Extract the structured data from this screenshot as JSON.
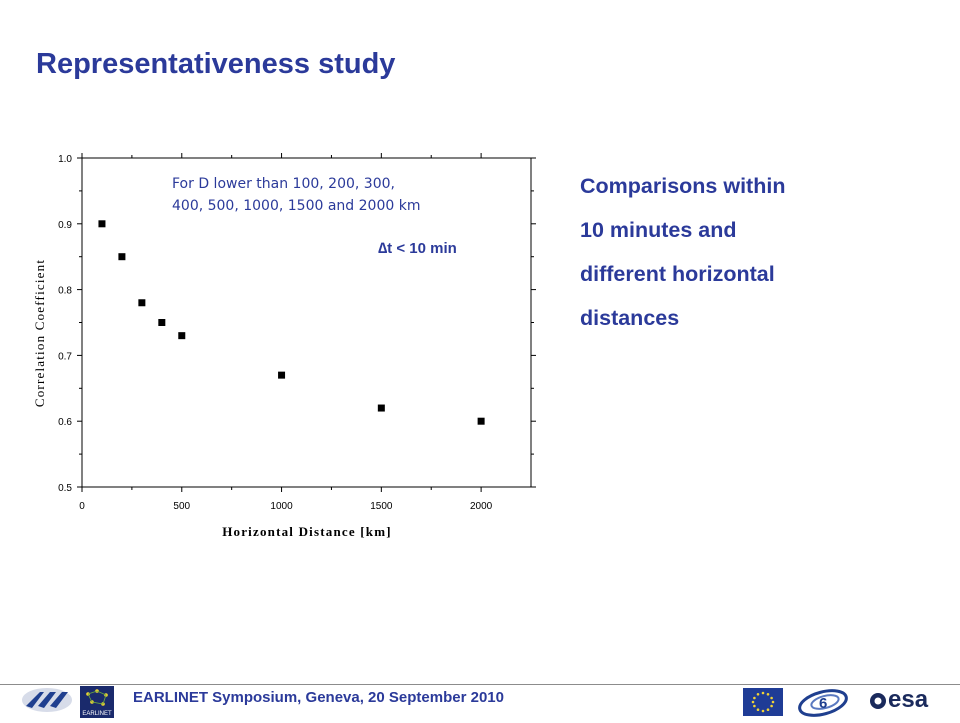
{
  "header": {
    "title": "Representativeness study"
  },
  "chart_data": {
    "type": "scatter",
    "xlabel": "Horizontal Distance [km]",
    "ylabel": "Correlation Coefficient",
    "xlim": [
      0,
      2250
    ],
    "ylim": [
      0.5,
      1.0
    ],
    "x_ticks": [
      0,
      500,
      1000,
      1500,
      2000
    ],
    "y_ticks": [
      0.5,
      0.6,
      0.7,
      0.8,
      0.9,
      1.0
    ],
    "x_tick_labels": [
      "0",
      "500",
      "1000",
      "1500",
      "2000"
    ],
    "y_tick_labels": [
      "0.5",
      "0.6",
      "0.7",
      "0.8",
      "0.9",
      "1.0"
    ],
    "grid": false,
    "series": [
      {
        "x": [
          100,
          200,
          300,
          400,
          500,
          1000,
          1500,
          2000
        ],
        "y": [
          0.9,
          0.85,
          0.78,
          0.75,
          0.73,
          0.67,
          0.62,
          0.6
        ]
      }
    ],
    "annotations": [
      "For D lower than 100, 200, 300,",
      "400, 500, 1000, 1500 and 2000 km",
      "∆t < 10 min"
    ]
  },
  "side_text": {
    "lines": [
      "Comparisons within",
      "10 minutes and",
      "different horizontal",
      "distances"
    ]
  },
  "footer": {
    "text": "EARLINET Symposium, Geneva, 20 September 2010",
    "earlinet_logo_label": "EARLINET",
    "esa_logo_label": "esa"
  },
  "colors": {
    "title": "#2b3a9a",
    "text": "#2b3a9a",
    "marker": "#000000"
  }
}
